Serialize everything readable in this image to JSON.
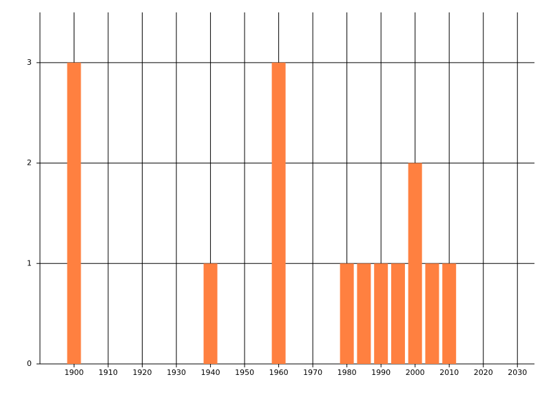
{
  "chart_data": {
    "type": "bar",
    "x": [
      1900,
      1940,
      1960,
      1980,
      1985,
      1990,
      1995,
      2000,
      2005,
      2010
    ],
    "values": [
      3,
      1,
      3,
      1,
      1,
      1,
      1,
      2,
      1,
      1
    ],
    "color": "#ff8040",
    "xlim": [
      1890,
      2035
    ],
    "xticks": [
      1900,
      1910,
      1920,
      1930,
      1940,
      1950,
      1960,
      1970,
      1980,
      1990,
      2000,
      2010,
      2020,
      2030
    ],
    "ylim": [
      0,
      3.5
    ],
    "yticks": [
      0,
      1,
      2,
      3
    ],
    "grid": true
  }
}
